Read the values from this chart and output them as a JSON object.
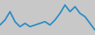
{
  "y": [
    6,
    9,
    14,
    8,
    5,
    7,
    5,
    6,
    7,
    8,
    6,
    9,
    13,
    18,
    14,
    17,
    13,
    11,
    7,
    3
  ],
  "line_color": "#2b8cc4",
  "background_color": "#c8c8c8",
  "linewidth": 1.4
}
